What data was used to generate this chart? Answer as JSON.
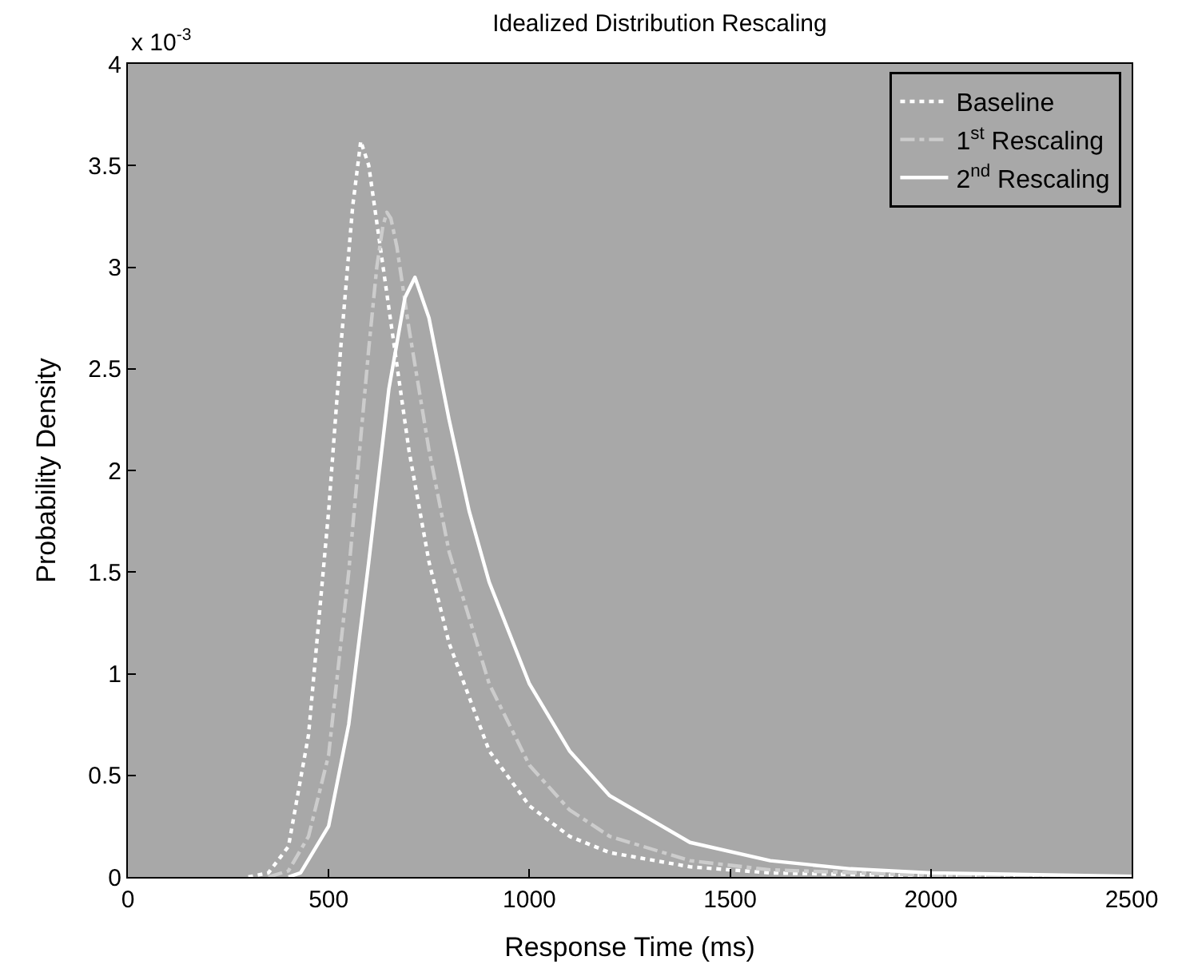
{
  "chart_data": {
    "type": "line",
    "title": "Idealized Distribution Rescaling",
    "xlabel": "Response Time (ms)",
    "ylabel": "Probability Density",
    "annotations": [
      "x 10$^{-3}$"
    ],
    "xlim": [
      0,
      2500
    ],
    "xticks": [
      0,
      500,
      1000,
      1500,
      2000,
      2500
    ],
    "ylim": [
      0,
      4
    ],
    "yticks": [
      0,
      0.5,
      1,
      1.5,
      2,
      2.5,
      3,
      3.5,
      4
    ],
    "grid": false,
    "legend": "top right",
    "series": [
      {
        "name": "Baseline",
        "color": "#ffffff",
        "line_style": "dotted",
        "x": [
          300,
          350,
          400,
          450,
          500,
          530,
          560,
          580,
          600,
          650,
          700,
          750,
          800,
          900,
          1000,
          1100,
          1200,
          1400,
          1600,
          2000,
          2500
        ],
        "values": [
          0,
          0.02,
          0.15,
          0.7,
          1.8,
          2.6,
          3.3,
          3.62,
          3.5,
          2.8,
          2.1,
          1.55,
          1.15,
          0.62,
          0.35,
          0.2,
          0.12,
          0.05,
          0.02,
          0.005,
          0
        ]
      },
      {
        "name": "1$^{st}$ Rescaling",
        "color": "#cccccc",
        "line_style": "dashed",
        "x": [
          350,
          400,
          450,
          500,
          550,
          600,
          620,
          635,
          645,
          655,
          670,
          700,
          750,
          800,
          900,
          1000,
          1100,
          1200,
          1400,
          1600,
          2000,
          2500
        ],
        "values": [
          0,
          0.03,
          0.2,
          0.6,
          1.5,
          2.6,
          3.0,
          3.2,
          3.27,
          3.24,
          3.1,
          2.7,
          2.1,
          1.6,
          0.95,
          0.55,
          0.33,
          0.2,
          0.08,
          0.035,
          0.008,
          0
        ]
      },
      {
        "name": "2$^{nd}$ Rescaling",
        "color": "#ffffff",
        "line_style": "solid",
        "x": [
          400,
          430,
          500,
          550,
          600,
          650,
          690,
          715,
          750,
          800,
          850,
          900,
          1000,
          1100,
          1200,
          1400,
          1600,
          1800,
          2000,
          2500
        ],
        "values": [
          0,
          0.02,
          0.25,
          0.75,
          1.55,
          2.4,
          2.85,
          2.95,
          2.75,
          2.25,
          1.8,
          1.45,
          0.95,
          0.62,
          0.4,
          0.17,
          0.08,
          0.04,
          0.02,
          0.003
        ]
      }
    ]
  }
}
